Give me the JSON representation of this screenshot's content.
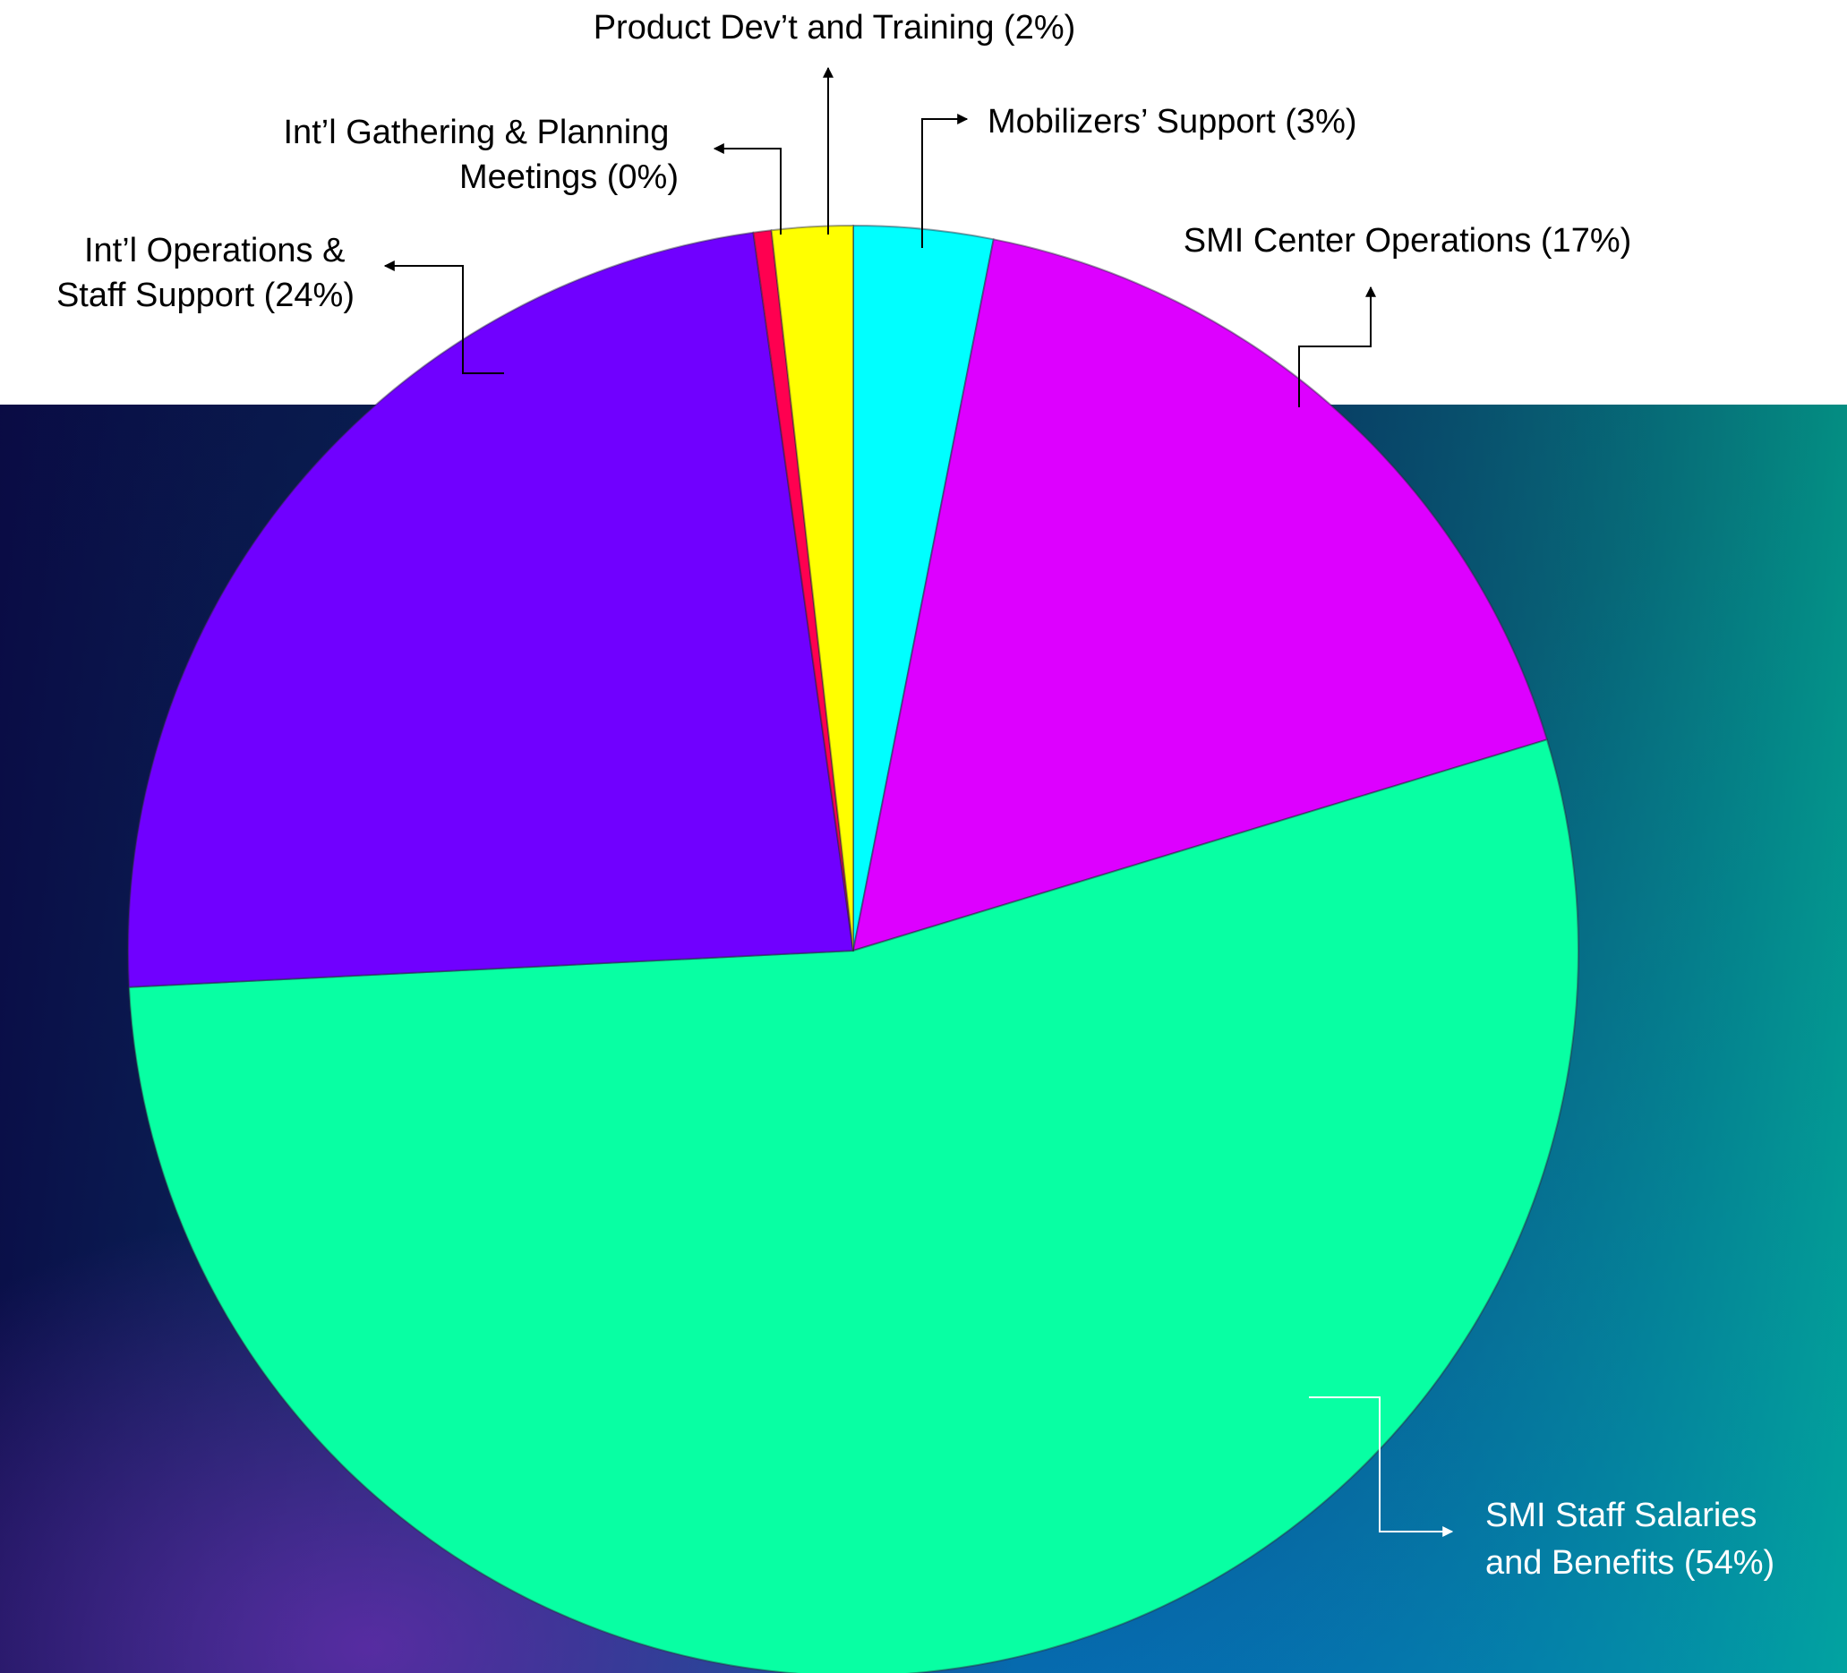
{
  "colors": {
    "bg_top_left": "#07123f",
    "bg_top_right": "#029a82",
    "bg_bottom_right": "#0290e6",
    "bg_bottom_left": "#120a4d",
    "label_dark": "#000000",
    "label_light": "#ffffff"
  },
  "chart_data": {
    "type": "pie",
    "title": "",
    "start_angle_deg": 0,
    "direction": "clockwise",
    "slices": [
      {
        "label": "Mobilizers’ Support (3%)",
        "value": 3.1,
        "color": "#00ffff"
      },
      {
        "label": "SMI Center Operations (17%)",
        "value": 17.2,
        "color": "#dd00ff"
      },
      {
        "label": "SMI Staff Salaries and Benefits (54%)",
        "value": 53.9,
        "color": "#08ffa3"
      },
      {
        "label": "Int’l Operations & Staff Support (24%)",
        "value": 23.6,
        "color": "#7000ff"
      },
      {
        "label": "Int’l Gathering & Planning Meetings (0%)",
        "value": 0.4,
        "color": "#ff0050"
      },
      {
        "label": "Product Dev’t and Training (2%)",
        "value": 1.8,
        "color": "#ffff00"
      }
    ],
    "labels": {
      "product": [
        "Product Dev’t and Training (2%)"
      ],
      "mobilizers": [
        "Mobilizers’ Support (3%)"
      ],
      "gathering": [
        "Int’l Gathering & Planning",
        "Meetings (0%)"
      ],
      "center": [
        "SMI Center Operations (17%)"
      ],
      "operations": [
        "Int’l Operations &",
        "Staff Support (24%)"
      ],
      "salaries": [
        "SMI Staff Salaries",
        "and Benefits (54%)"
      ]
    }
  }
}
